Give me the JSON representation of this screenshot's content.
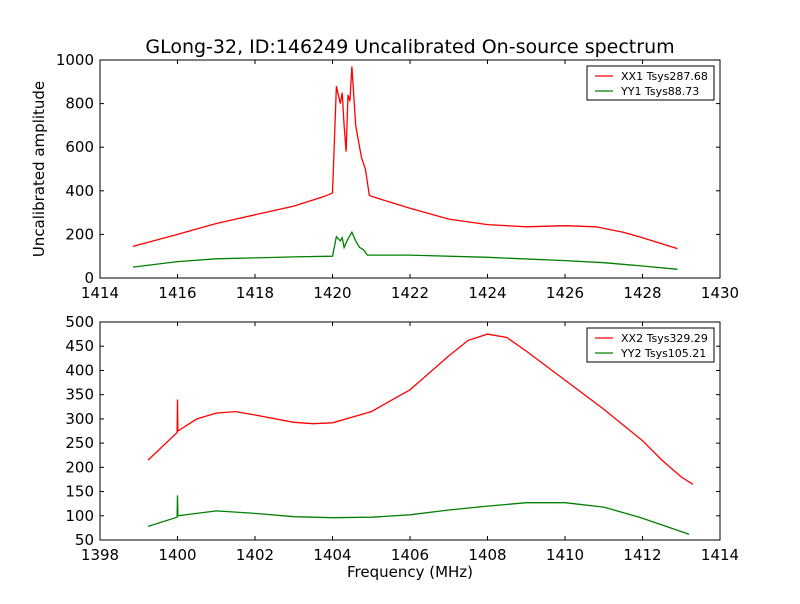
{
  "title": "GLong-32, ID:146249 Uncalibrated On-source spectrum",
  "colors": {
    "xx": "#ff0000",
    "yy": "#008000"
  },
  "chart_data": [
    {
      "type": "line",
      "ylabel": "Uncalibrated amplitude",
      "xlabel": "",
      "xlim": [
        1414,
        1430
      ],
      "ylim": [
        0,
        1000
      ],
      "xticks": [
        "1414",
        "1416",
        "1418",
        "1420",
        "1422",
        "1424",
        "1426",
        "1428",
        "1430"
      ],
      "yticks": [
        "0",
        "200",
        "400",
        "600",
        "800",
        "1000"
      ],
      "legend_position": "top-right",
      "series": [
        {
          "name": "XX1 Tsys287.68",
          "color": "#ff0000",
          "x": [
            1414.85,
            1416,
            1417,
            1418,
            1419,
            1419.8,
            1420.0,
            1420.1,
            1420.2,
            1420.25,
            1420.3,
            1420.35,
            1420.4,
            1420.45,
            1420.5,
            1420.6,
            1420.7,
            1420.75,
            1420.85,
            1420.95,
            1421,
            1422,
            1423,
            1424,
            1425,
            1426,
            1426.8,
            1427.5,
            1428,
            1428.9
          ],
          "y": [
            145,
            200,
            250,
            290,
            330,
            375,
            390,
            880,
            800,
            850,
            700,
            580,
            840,
            810,
            970,
            700,
            600,
            550,
            500,
            380,
            375,
            320,
            270,
            245,
            235,
            240,
            235,
            210,
            185,
            135
          ]
        },
        {
          "name": "YY1 Tsys88.73",
          "color": "#008000",
          "x": [
            1414.85,
            1416,
            1417,
            1418,
            1419,
            1420,
            1420.1,
            1420.2,
            1420.25,
            1420.3,
            1420.4,
            1420.5,
            1420.6,
            1420.7,
            1420.8,
            1420.9,
            1422,
            1424,
            1426,
            1427,
            1428,
            1428.9
          ],
          "y": [
            50,
            75,
            88,
            92,
            97,
            100,
            190,
            170,
            185,
            140,
            180,
            210,
            170,
            140,
            130,
            105,
            105,
            95,
            80,
            70,
            55,
            40
          ]
        }
      ]
    },
    {
      "type": "line",
      "ylabel": "",
      "xlabel": "Frequency (MHz)",
      "xlim": [
        1398,
        1414
      ],
      "ylim": [
        50,
        500
      ],
      "xticks": [
        "1398",
        "1400",
        "1402",
        "1404",
        "1406",
        "1408",
        "1410",
        "1412",
        "1414"
      ],
      "yticks": [
        "50",
        "100",
        "150",
        "200",
        "250",
        "300",
        "350",
        "400",
        "450",
        "500"
      ],
      "legend_position": "top-right",
      "series": [
        {
          "name": "XX2 Tsys329.29",
          "color": "#ff0000",
          "x": [
            1399.24,
            1399.99,
            1400,
            1400.01,
            1400.5,
            1401,
            1401.5,
            1402,
            1403,
            1403.5,
            1404,
            1405,
            1406,
            1407,
            1407.5,
            1408,
            1408.5,
            1409,
            1410,
            1411,
            1412,
            1412.5,
            1413,
            1413.3
          ],
          "y": [
            215,
            272,
            340,
            275,
            300,
            312,
            315,
            308,
            293,
            290,
            292,
            315,
            360,
            430,
            462,
            475,
            468,
            440,
            380,
            320,
            255,
            215,
            180,
            165
          ]
        },
        {
          "name": "YY2 Tsys105.21",
          "color": "#008000",
          "x": [
            1399.24,
            1399.99,
            1400,
            1400.01,
            1401,
            1402,
            1403,
            1404,
            1405,
            1406,
            1407,
            1408,
            1409,
            1410,
            1411,
            1412,
            1413.2
          ],
          "y": [
            78,
            97,
            142,
            100,
            110,
            105,
            98,
            96,
            97,
            102,
            112,
            120,
            127,
            127,
            118,
            95,
            62
          ]
        }
      ]
    }
  ]
}
